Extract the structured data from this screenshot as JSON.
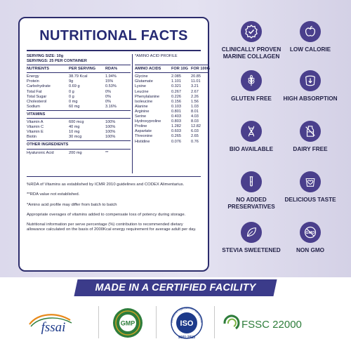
{
  "card": {
    "title": "NUTRITIONAL FACTS",
    "serving_size": "SERVING SIZE: 10g",
    "servings": "SERVINGS: 25 PER CONTAINER",
    "amino_heading": "*AMINO ACID PROFILE",
    "nutrients_header": [
      "NUTRIENTS",
      "PER SERVING",
      "RDA%"
    ],
    "nutrients": [
      [
        "Energy",
        "38.79 Kcal",
        "1.94%"
      ],
      [
        "Protein",
        "9g",
        "15%"
      ],
      [
        "Carbohydrate",
        "0.69 g",
        "0.53%"
      ],
      [
        "Total Fat",
        "0 g",
        "0%"
      ],
      [
        "Total Sugar",
        "0 g",
        "0%"
      ],
      [
        "Cholesterol",
        "0 mg",
        "0%"
      ],
      [
        "Sodium",
        "60 mg",
        "3.16%"
      ]
    ],
    "vitamins_heading": "VITAMINS",
    "vitamins": [
      [
        "Vitamin A",
        "600 mcg",
        "100%"
      ],
      [
        "Vitamin C",
        "40 mg",
        "100%"
      ],
      [
        "Vitamin E",
        "10 mg",
        "100%"
      ],
      [
        "Biotin",
        "30 mcg",
        "100%"
      ]
    ],
    "other_heading": "OTHER INGREDIENTS",
    "other": [
      [
        "Hyaluronic Acid",
        "200 mg",
        "**"
      ]
    ],
    "amino_header": [
      "AMINO ACIDS",
      "FOR 10G",
      "FOR 100G"
    ],
    "amino": [
      [
        "Glycine",
        "2.085",
        "20.85"
      ],
      [
        "Glutamate",
        "1.101",
        "11.01"
      ],
      [
        "Lysine",
        "0.321",
        "3.21"
      ],
      [
        "Leucine",
        "0.267",
        "2.67"
      ],
      [
        "Phenylalanine",
        "0.226",
        "2.26"
      ],
      [
        "Isoleucine",
        "0.156",
        "1.56"
      ],
      [
        "Alanine",
        "0.103",
        "1.03"
      ],
      [
        "Arginine",
        "0.801",
        "8.01"
      ],
      [
        "Serine",
        "0.403",
        "4.03"
      ],
      [
        "Hydroxyproline",
        "0.803",
        "8.03"
      ],
      [
        "Proline",
        "1.282",
        "12.82"
      ],
      [
        "Aspartate",
        "0.603",
        "6.03"
      ],
      [
        "Threonine",
        "0.265",
        "2.65"
      ],
      [
        "Histidine",
        "0.076",
        "0.76"
      ]
    ],
    "notes": [
      "%RDA of Vitamins as established by ICMR 2010 guidelines and CODEX Alimentarius.",
      "**RDA value not established.",
      "*Amino acid profile may differ from batch to batch",
      "Appropriate overages of vitamins added to compensate loss of potency during storage.",
      "Nutritional information per serve percentage (%) contribution to recommended dietary allowance calculated on the basis of 2000Kcal energy requirement for average adult per day."
    ]
  },
  "features": [
    {
      "label": "CLINICALLY PROVEN MARINE COLLAGEN",
      "icon": "check-badge-icon"
    },
    {
      "label": "LOW CALORIE",
      "icon": "apple-icon"
    },
    {
      "label": "GLUTEN FREE",
      "icon": "wheat-icon"
    },
    {
      "label": "HIGH ABSORPTION",
      "icon": "absorption-icon"
    },
    {
      "label": "BIO AVAILABLE",
      "icon": "dna-icon"
    },
    {
      "label": "DAIRY FREE",
      "icon": "milk-bottle-icon"
    },
    {
      "label": "NO ADDED PRESERVATIVES",
      "icon": "test-tube-icon"
    },
    {
      "label": "DELICIOUS TASTE",
      "icon": "heart-cup-icon"
    },
    {
      "label": "STEVIA SWEETENED",
      "icon": "leaf-icon"
    },
    {
      "label": "NON GMO",
      "icon": "non-gmo-icon"
    }
  ],
  "banner": "MADE IN A CERTIFIED FACILITY",
  "certs": {
    "fssai": "fssai",
    "gmp": "GMP",
    "iso_top": "ISO",
    "iso_bottom": "9001:2015",
    "iso_ring": "International Organization for Standardization",
    "fssc": "FSSC 22000"
  },
  "colors": {
    "navy": "#262a73",
    "icon_purple": "#4a3f8c",
    "banner": "#3b3b8a",
    "fssc_green": "#2e7d3b",
    "background": "#dcd9ec"
  }
}
